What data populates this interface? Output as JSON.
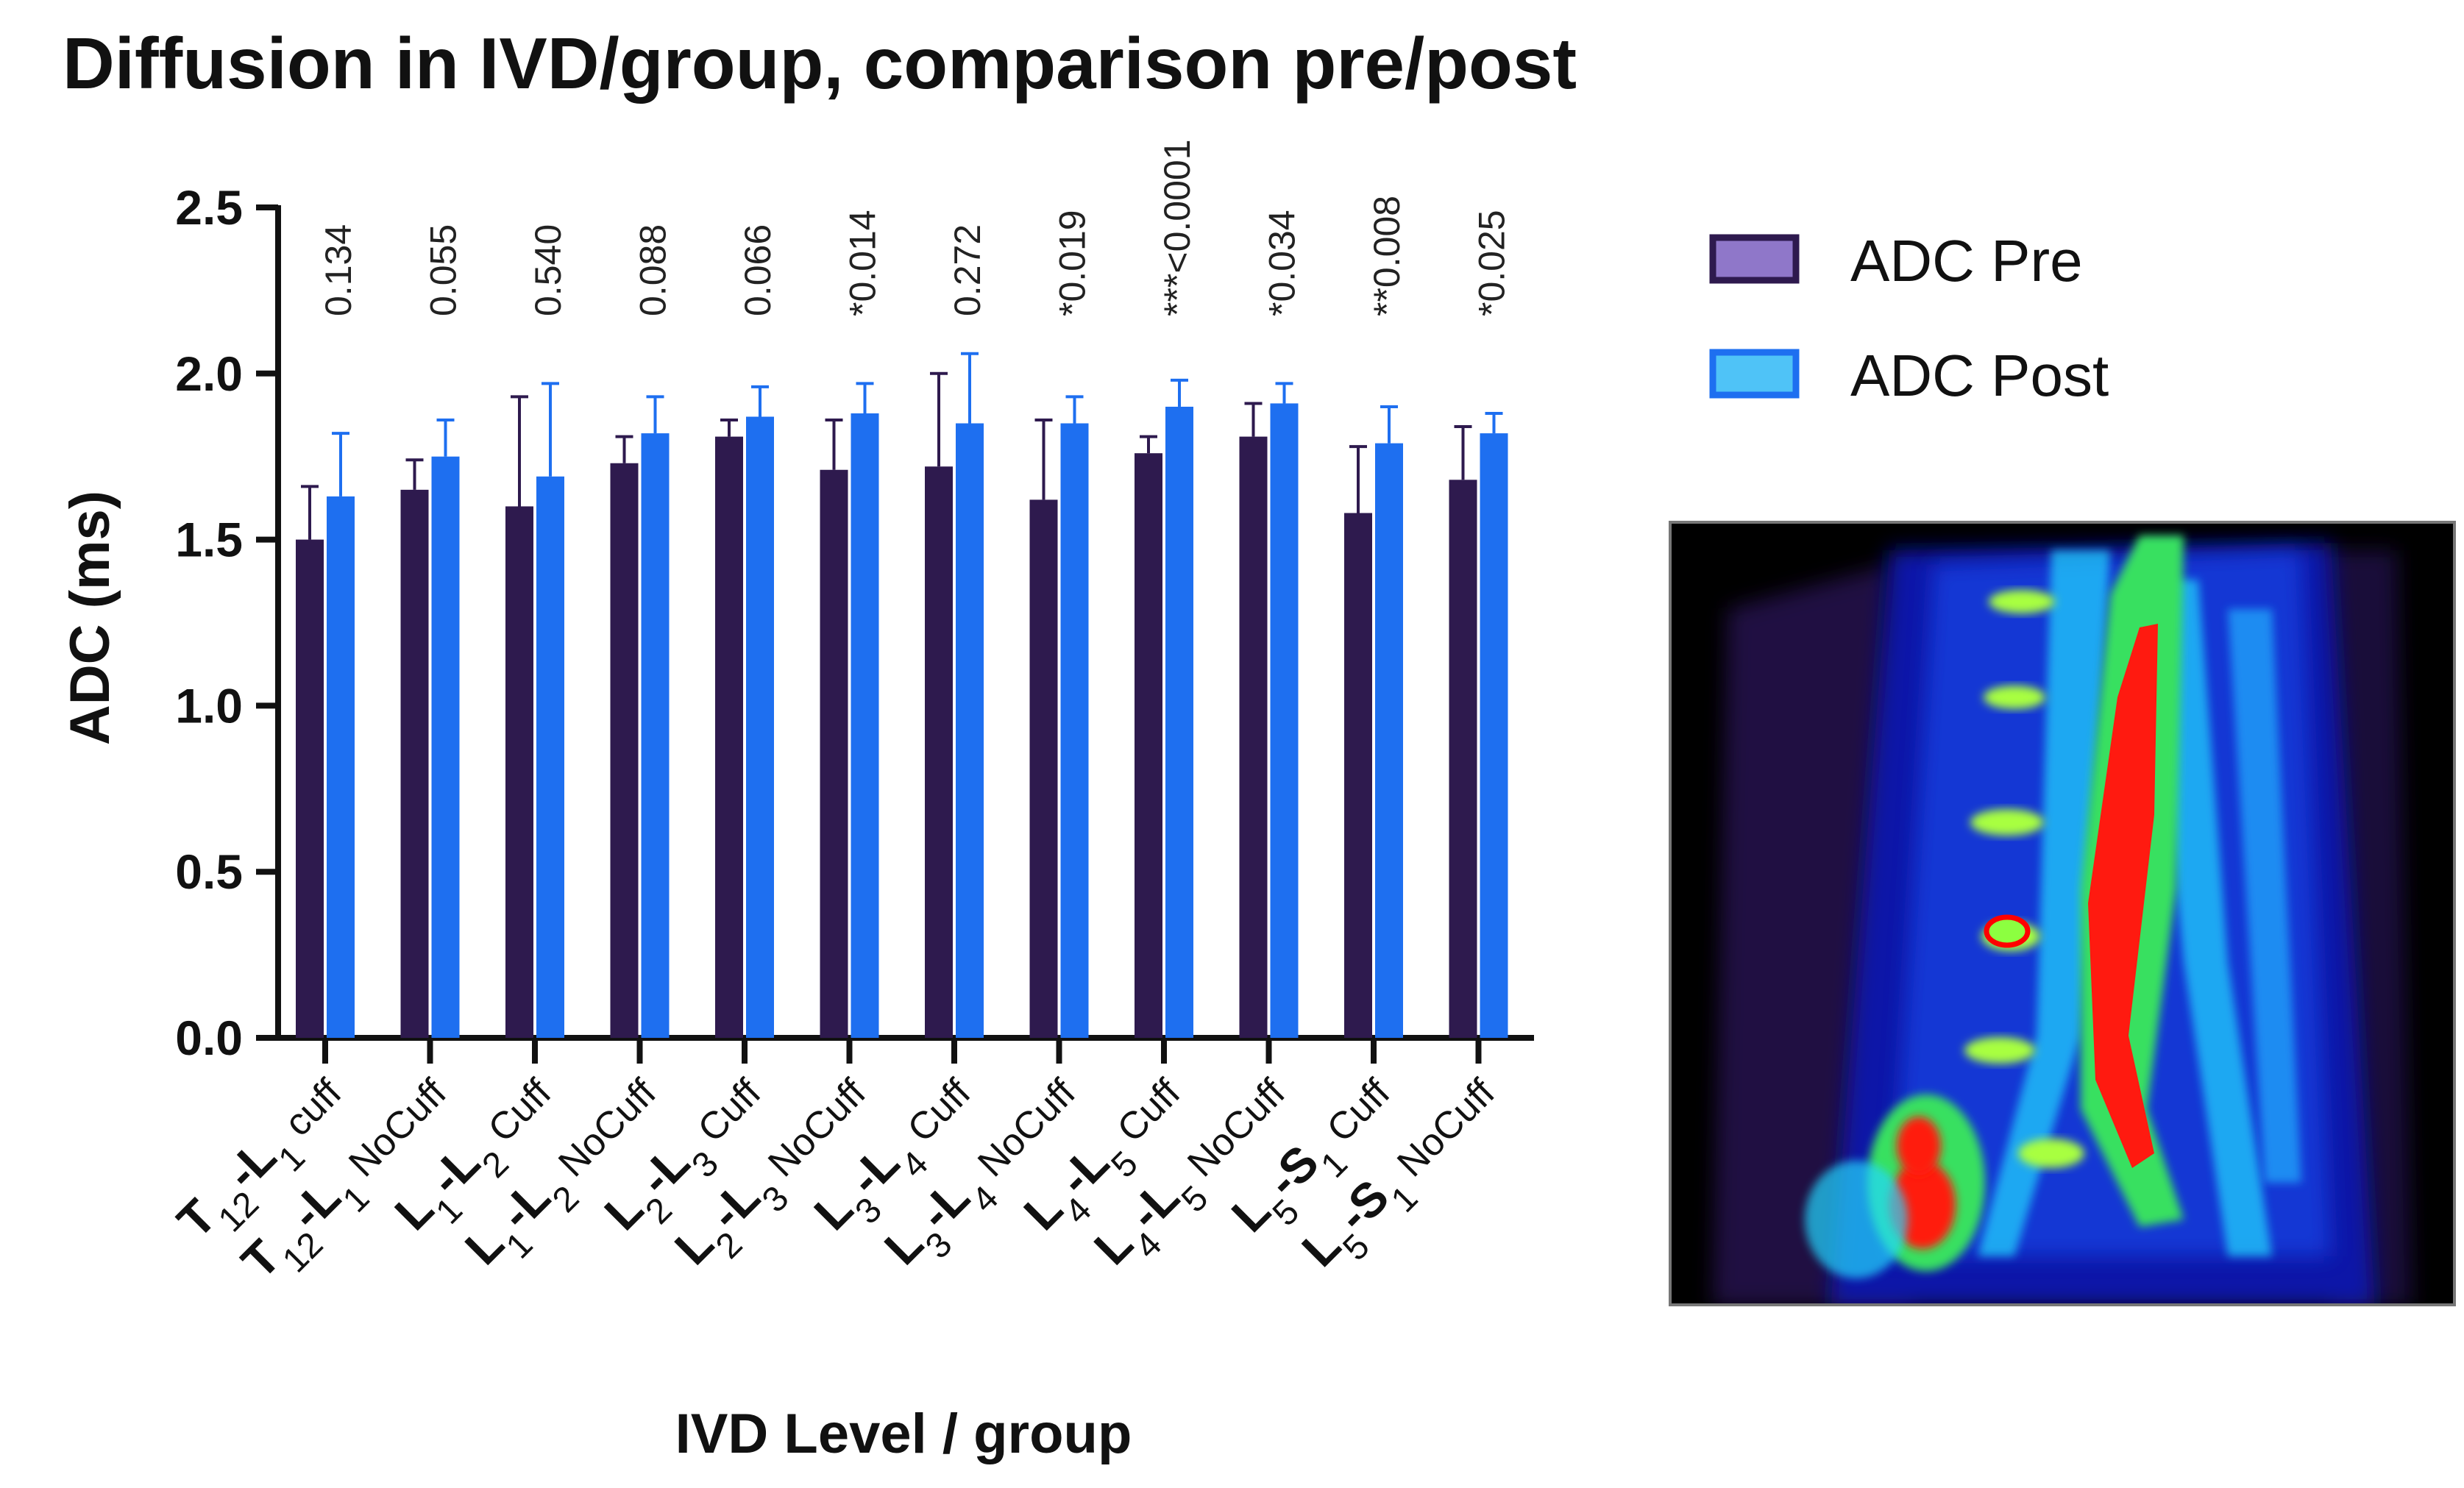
{
  "chart_data": {
    "type": "bar",
    "title": "Diffusion in IVD/group, comparison pre/post",
    "xlabel": "IVD Level / group",
    "ylabel": "ADC (ms)",
    "ylim": [
      0,
      2.5
    ],
    "yticks": [
      "0.0",
      "0.5",
      "1.0",
      "1.5",
      "2.0",
      "2.5"
    ],
    "categories": [
      {
        "parts": [
          [
            "T",
            "big"
          ],
          [
            "12",
            "sub"
          ],
          [
            "-",
            "big"
          ],
          [
            "L",
            "big"
          ],
          [
            "1",
            "sub"
          ],
          [
            " cuff",
            "norm"
          ]
        ]
      },
      {
        "parts": [
          [
            "T",
            "big"
          ],
          [
            "12",
            "sub"
          ],
          [
            "-",
            "big"
          ],
          [
            "L",
            "big"
          ],
          [
            "1",
            "sub"
          ],
          [
            " NoCuff",
            "norm"
          ]
        ]
      },
      {
        "parts": [
          [
            "L",
            "big"
          ],
          [
            "1",
            "sub"
          ],
          [
            "-",
            "big"
          ],
          [
            "L",
            "big"
          ],
          [
            "2",
            "sub"
          ],
          [
            " Cuff",
            "norm"
          ]
        ]
      },
      {
        "parts": [
          [
            "L",
            "big"
          ],
          [
            "1",
            "sub"
          ],
          [
            "-",
            "big"
          ],
          [
            "L",
            "big"
          ],
          [
            "2",
            "sub"
          ],
          [
            " NoCuff",
            "norm"
          ]
        ]
      },
      {
        "parts": [
          [
            "L",
            "big"
          ],
          [
            "2",
            "sub"
          ],
          [
            "-",
            "big"
          ],
          [
            "L",
            "big"
          ],
          [
            "3",
            "sub"
          ],
          [
            " Cuff",
            "norm"
          ]
        ]
      },
      {
        "parts": [
          [
            "L",
            "big"
          ],
          [
            "2",
            "sub"
          ],
          [
            "-",
            "big"
          ],
          [
            "L",
            "big"
          ],
          [
            "3",
            "sub"
          ],
          [
            " NoCuff",
            "norm"
          ]
        ]
      },
      {
        "parts": [
          [
            "L",
            "big"
          ],
          [
            "3",
            "sub"
          ],
          [
            "-",
            "big"
          ],
          [
            "L",
            "big"
          ],
          [
            "4",
            "sub"
          ],
          [
            " Cuff",
            "norm"
          ]
        ]
      },
      {
        "parts": [
          [
            "L",
            "big"
          ],
          [
            "3",
            "sub"
          ],
          [
            "-",
            "big"
          ],
          [
            "L",
            "big"
          ],
          [
            "4",
            "sub"
          ],
          [
            " NoCuff",
            "norm"
          ]
        ]
      },
      {
        "parts": [
          [
            "L",
            "big"
          ],
          [
            "4",
            "sub"
          ],
          [
            "-",
            "big"
          ],
          [
            "L",
            "big"
          ],
          [
            "5",
            "sub"
          ],
          [
            " Cuff",
            "norm"
          ]
        ]
      },
      {
        "parts": [
          [
            "L",
            "big"
          ],
          [
            "4",
            "sub"
          ],
          [
            "-",
            "big"
          ],
          [
            "L",
            "big"
          ],
          [
            "5",
            "sub"
          ],
          [
            " NoCuff",
            "norm"
          ]
        ]
      },
      {
        "parts": [
          [
            "L",
            "big"
          ],
          [
            "5",
            "sub"
          ],
          [
            "-",
            "big"
          ],
          [
            "S",
            "big"
          ],
          [
            "1",
            "sub"
          ],
          [
            " Cuff",
            "norm"
          ]
        ]
      },
      {
        "parts": [
          [
            "L",
            "big"
          ],
          [
            "5",
            "sub"
          ],
          [
            "-",
            "big"
          ],
          [
            "S",
            "big"
          ],
          [
            "1",
            "sub"
          ],
          [
            " NoCuff",
            "norm"
          ]
        ]
      }
    ],
    "series": [
      {
        "name": "ADC Pre",
        "color": "#2e1a4e",
        "values": [
          1.5,
          1.65,
          1.6,
          1.73,
          1.81,
          1.71,
          1.72,
          1.62,
          1.76,
          1.81,
          1.58,
          1.68
        ],
        "error": [
          0.16,
          0.09,
          0.33,
          0.08,
          0.05,
          0.15,
          0.28,
          0.24,
          0.05,
          0.1,
          0.2,
          0.16
        ]
      },
      {
        "name": "ADC Post",
        "color": "#1e6ff0",
        "values": [
          1.63,
          1.75,
          1.69,
          1.82,
          1.87,
          1.88,
          1.85,
          1.85,
          1.9,
          1.91,
          1.79,
          1.82
        ],
        "error": [
          0.19,
          0.11,
          0.28,
          0.11,
          0.09,
          0.09,
          0.21,
          0.08,
          0.08,
          0.06,
          0.11,
          0.06
        ]
      }
    ],
    "pvalues": [
      "0.134",
      "0.055",
      "0.540",
      "0.088",
      "0.066",
      "*0.014",
      "0.272",
      "*0.019",
      "***<0.0001",
      "*0.034",
      "**0.008",
      "*0.025"
    ],
    "legend_position": "right",
    "grid": false
  },
  "legend": {
    "pre": {
      "label": "ADC Pre",
      "fill": "#8f77c9",
      "border": "#2e1a4e"
    },
    "post": {
      "label": "ADC Post",
      "fill": "#4fc3f7",
      "border": "#1e6ff0"
    }
  }
}
